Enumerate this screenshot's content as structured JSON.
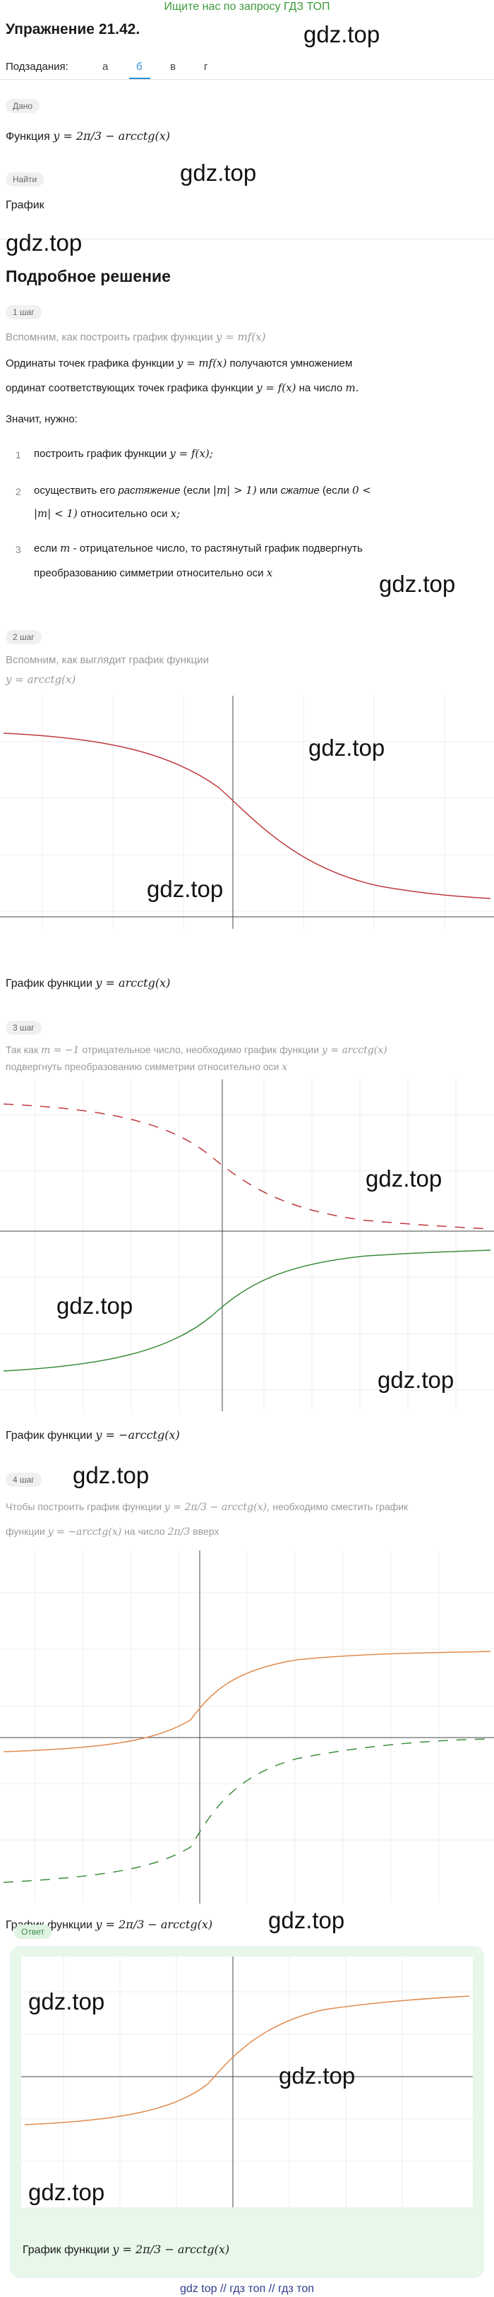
{
  "topbar": {
    "text": "Ищите нас по запросу ГДЗ ТОП"
  },
  "header": {
    "title": "Упражнение 21.42."
  },
  "watermark": {
    "text": "gdz.top"
  },
  "subtasks": {
    "label": "Подзадания:",
    "items": [
      "а",
      "б",
      "в",
      "г"
    ],
    "active": "б"
  },
  "given": {
    "pill": "Дано",
    "text": "Функция",
    "formula": "y = 2π/3 − arcctg(x)"
  },
  "find": {
    "pill": "Найти",
    "text": "График"
  },
  "solution": {
    "heading": "Подробное решение",
    "step1": {
      "pill": "1 шаг",
      "intro": "Вспомним, как построить график функции",
      "intro_formula": "y = mf(x)",
      "line1a": "Ординаты точек графика функции",
      "line1_formula": "y = mf(x)",
      "line1b": "получаются умножением",
      "line2a": "ординат соответствующих точек графика функции",
      "line2_formula": "y = f(x)",
      "line2b": "на число",
      "line2_m": "m.",
      "need": "Значит, нужно:",
      "items": [
        {
          "num": "1",
          "text": "построить график функции",
          "formula": "y = f(x);"
        },
        {
          "num": "2",
          "text_a": "осуществить его",
          "em1": "растяжение",
          "text_b": "(если",
          "f1": "|m| > 1)",
          "text_c": "или",
          "em2": "сжатие",
          "text_d": "(если",
          "f2": "0 <",
          "line2": "|m| < 1)",
          "line2b": "относительно оси",
          "line2c": "x;"
        },
        {
          "num": "3",
          "text_a": "если",
          "f1": "m",
          "text_b": "- отрицательное число, то растянутый график подвергнуть",
          "line2": "преобразованию симметрии относительно оси",
          "f2": "x"
        }
      ]
    },
    "step2": {
      "pill": "2 шаг",
      "intro": "Вспомним, как выглядит график функции",
      "formula": "y = arcctg(x)",
      "caption": "График функции",
      "caption_formula": "y = arcctg(x)"
    },
    "step3": {
      "pill": "3 шаг",
      "intro_a": "Так как",
      "f1": "m = −1",
      "intro_b": "отрицательное число, необходимо график функции",
      "f2": "y = arcctg(x)",
      "intro_c": "подвергнуть преобразованию симметрии относительно оси",
      "f3": "x",
      "caption": "График функции",
      "caption_formula": "y = −arcctg(x)"
    },
    "step4": {
      "pill": "4 шаг",
      "intro_a": "Чтобы построить график функции",
      "f1": "y = 2π/3 − arcctg(x),",
      "intro_b": "необходимо сместить график",
      "intro_c": "функции",
      "f2": "y = −arcctg(x)",
      "intro_d": "на число",
      "f3": "2π/3",
      "intro_e": "вверх",
      "caption": "График функции",
      "caption_formula": "y = 2π/3 − arcctg(x)"
    }
  },
  "answer": {
    "pill": "Ответ",
    "caption": "График функции",
    "caption_formula": "y = 2π/3 − arcctg(x)"
  },
  "footer": {
    "text": "gdz top  //  гдз топ  //  гдз топ"
  },
  "colors": {
    "accent": "#2b8fd6",
    "red": "#c0383c",
    "green": "#3c8c3c",
    "orange": "#e08a4c",
    "answer_bg": "#e7f7e9"
  }
}
